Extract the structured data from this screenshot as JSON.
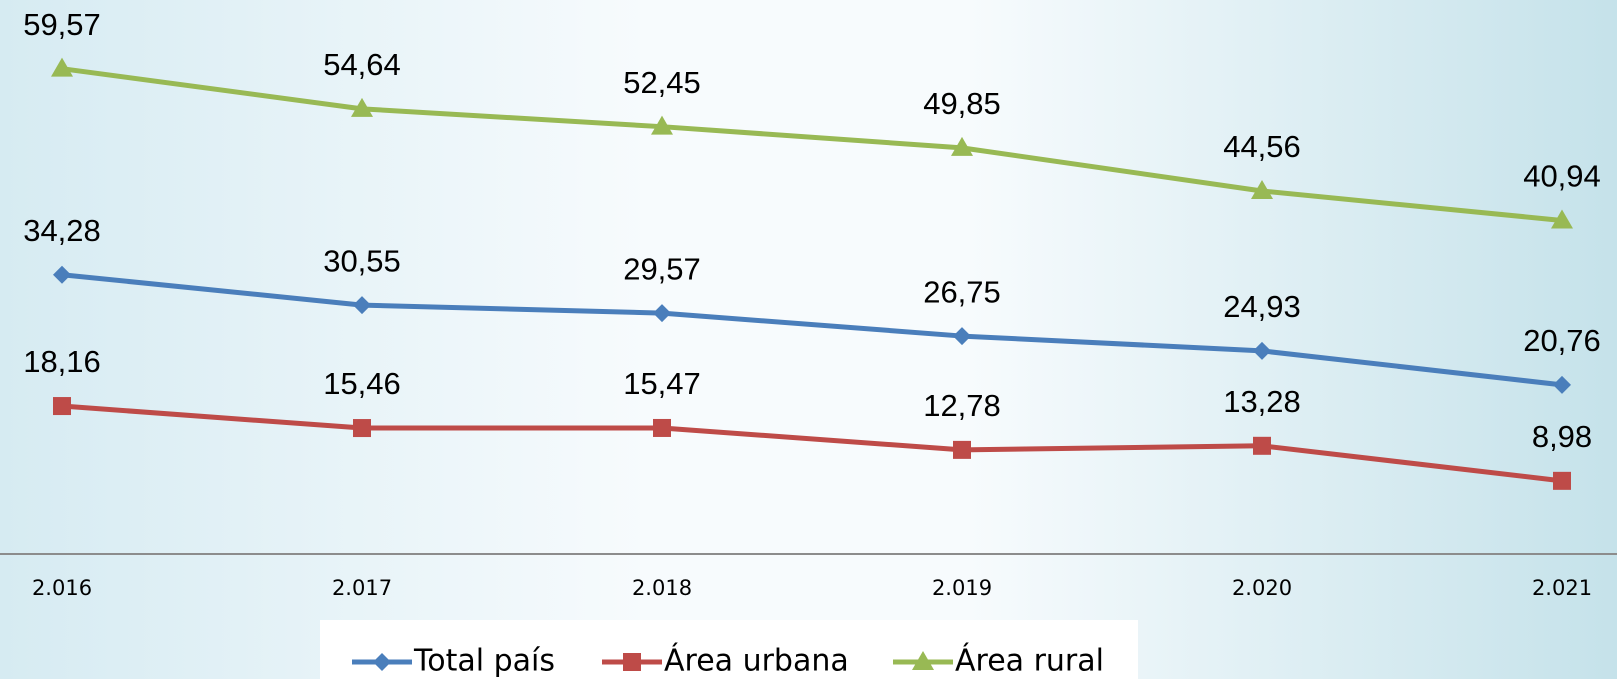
{
  "chart_data": {
    "type": "line",
    "categories": [
      "2.016",
      "2.017",
      "2.018",
      "2.019",
      "2.020",
      "2.021"
    ],
    "series": [
      {
        "name": "Total país",
        "color": "#4a7ebb",
        "marker": "diamond",
        "values": [
          34.28,
          30.55,
          29.57,
          26.75,
          24.93,
          20.76
        ],
        "value_labels": [
          "34,28",
          "30,55",
          "29,57",
          "26,75",
          "24,93",
          "20,76"
        ]
      },
      {
        "name": "Área urbana",
        "color": "#be4b48",
        "marker": "square",
        "values": [
          18.16,
          15.46,
          15.47,
          12.78,
          13.28,
          8.98
        ],
        "value_labels": [
          "18,16",
          "15,46",
          "15,47",
          "12,78",
          "13,28",
          "8,98"
        ]
      },
      {
        "name": "Área rural",
        "color": "#98b954",
        "marker": "triangle",
        "values": [
          59.57,
          54.64,
          52.45,
          49.85,
          44.56,
          40.94
        ],
        "value_labels": [
          "59,57",
          "54,64",
          "52,45",
          "49,85",
          "44,56",
          "40,94"
        ]
      }
    ],
    "ylim": [
      0,
      68
    ],
    "legend": "bottom"
  }
}
